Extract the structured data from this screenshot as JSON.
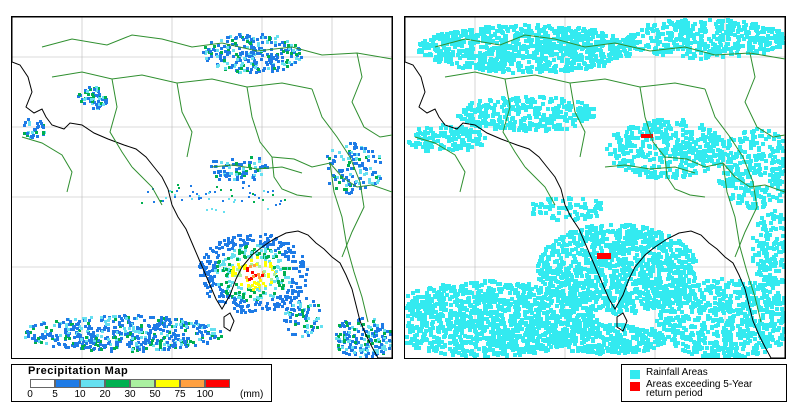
{
  "panels": [
    {
      "id": "precipitation",
      "basemap": "South Asia"
    },
    {
      "id": "rainfall-areas",
      "basemap": "South Asia"
    }
  ],
  "precipitation_legend": {
    "title": "Precipitation Map",
    "classes": [
      {
        "label": "0",
        "color": "#ffffff"
      },
      {
        "label": "5",
        "color": "#1e7be6"
      },
      {
        "label": "10",
        "color": "#66e0f0"
      },
      {
        "label": "20",
        "color": "#00b050"
      },
      {
        "label": "30",
        "color": "#aaf0a0"
      },
      {
        "label": "50",
        "color": "#ffff00"
      },
      {
        "label": "75",
        "color": "#ffa040"
      },
      {
        "label": "100",
        "color": "#ff0000"
      }
    ],
    "unit": "(mm)"
  },
  "rainfall_legend": {
    "items": [
      {
        "label": "Rainfall Areas",
        "color": "#33eaf0"
      },
      {
        "label": "Areas exceeding 5-Year return period",
        "color": "#ff0000"
      }
    ]
  },
  "map_colors": {
    "ocean": "#ffffff",
    "coastline": "#000000",
    "borders": "#2f8f2f",
    "grid": "#b8b8b8"
  }
}
